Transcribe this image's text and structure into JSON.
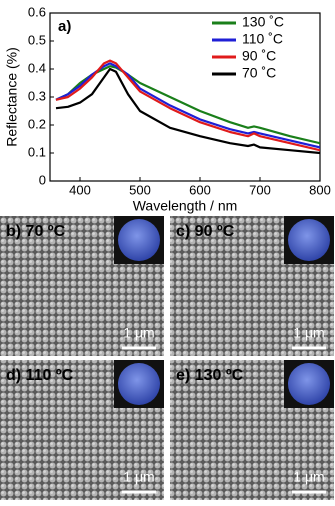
{
  "chart_data": {
    "type": "line",
    "panel_label": "a)",
    "xlabel": "Wavelength / nm",
    "ylabel": "Reflectance (%)",
    "x": [
      360,
      380,
      400,
      420,
      440,
      450,
      460,
      480,
      500,
      550,
      600,
      650,
      680,
      690,
      700,
      750,
      800
    ],
    "series": [
      {
        "name": "130 ˚C",
        "color": "#1a7f1a",
        "values": [
          0.29,
          0.31,
          0.35,
          0.38,
          0.4,
          0.41,
          0.405,
          0.38,
          0.35,
          0.3,
          0.25,
          0.21,
          0.19,
          0.195,
          0.19,
          0.16,
          0.135
        ]
      },
      {
        "name": "110 ˚C",
        "color": "#1f1fd6",
        "values": [
          0.29,
          0.31,
          0.34,
          0.38,
          0.41,
          0.42,
          0.41,
          0.38,
          0.33,
          0.27,
          0.22,
          0.185,
          0.17,
          0.175,
          0.17,
          0.145,
          0.12
        ]
      },
      {
        "name": "90 ˚C",
        "color": "#e01b1b",
        "values": [
          0.29,
          0.3,
          0.33,
          0.37,
          0.42,
          0.43,
          0.42,
          0.37,
          0.32,
          0.26,
          0.21,
          0.175,
          0.16,
          0.17,
          0.16,
          0.135,
          0.11
        ]
      },
      {
        "name": "70 ˚C",
        "color": "#000000",
        "values": [
          0.26,
          0.265,
          0.28,
          0.31,
          0.37,
          0.4,
          0.39,
          0.31,
          0.25,
          0.19,
          0.16,
          0.135,
          0.125,
          0.13,
          0.12,
          0.11,
          0.1
        ]
      }
    ],
    "xlim": [
      350,
      800
    ],
    "xticks": [
      400,
      500,
      600,
      700,
      800
    ],
    "ylim": [
      0,
      0.6
    ],
    "yticks": [
      0,
      0.1,
      0.2,
      0.3,
      0.4,
      0.5,
      0.6
    ],
    "legend": "upper right"
  },
  "panels": [
    {
      "label": "b) 70 ºC",
      "scale_bar": "1 μm"
    },
    {
      "label": "c) 90 ºC",
      "scale_bar": "1 μm"
    },
    {
      "label": "d) 110 ºC",
      "scale_bar": "1 μm"
    },
    {
      "label": "e) 130 ºC",
      "scale_bar": "1 μm"
    }
  ]
}
